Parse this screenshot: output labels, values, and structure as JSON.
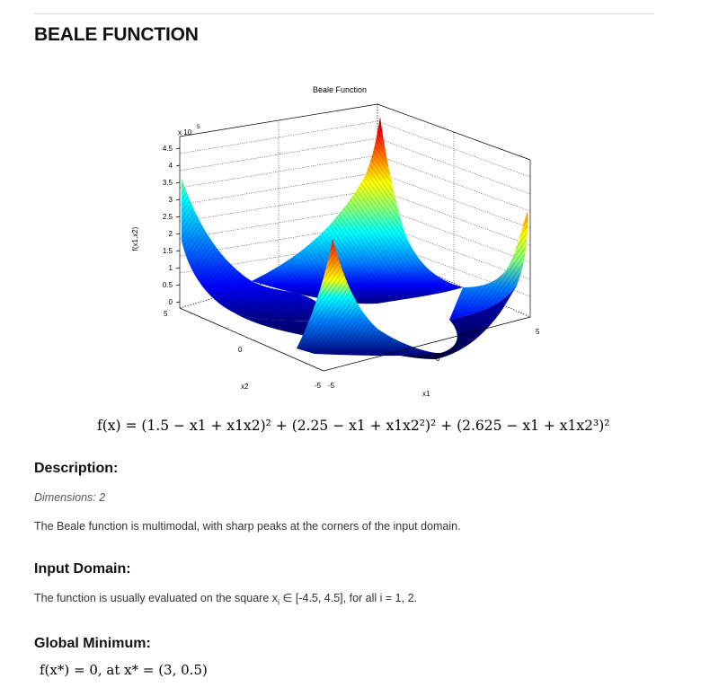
{
  "page": {
    "title": "BEALE FUNCTION"
  },
  "figure": {
    "title": "Beale Function",
    "z_scale": "x 10",
    "z_exponent": "5",
    "zlabel": "f(x1,x2)",
    "xlabel": "x1",
    "ylabel": "x2",
    "z_ticks": [
      "4.5",
      "4",
      "3.5",
      "3",
      "2.5",
      "2",
      "1.5",
      "1",
      "0.5",
      "0"
    ],
    "x_ticks": [
      "-5",
      "0",
      "5"
    ],
    "y_ticks": [
      "5",
      "0",
      "-5"
    ],
    "colormap": [
      "#00007f",
      "#0000ff",
      "#007fff",
      "#00ffff",
      "#7fff7f",
      "#ffff00",
      "#ff7f00",
      "#ff0000",
      "#7f0000"
    ]
  },
  "formula": {
    "text": "f(x) = (1.5 − x1 + x1x2)² + (2.25 − x1 + x1x2²)² + (2.625 − x1 + x1x2³)²"
  },
  "description": {
    "heading": "Description:",
    "dimensions": "Dimensions: 2",
    "text": "The Beale function is multimodal, with sharp peaks at the corners of the input domain."
  },
  "input_domain": {
    "heading": "Input Domain:",
    "text_before": "The function is usually evaluated on the square x",
    "subscript": "i",
    "text_after": " ∈ [-4.5, 4.5], for all i = 1, 2."
  },
  "global_minimum": {
    "heading": "Global Minimum:",
    "formula": "f(x*) = 0, at x* = (3, 0.5)"
  }
}
